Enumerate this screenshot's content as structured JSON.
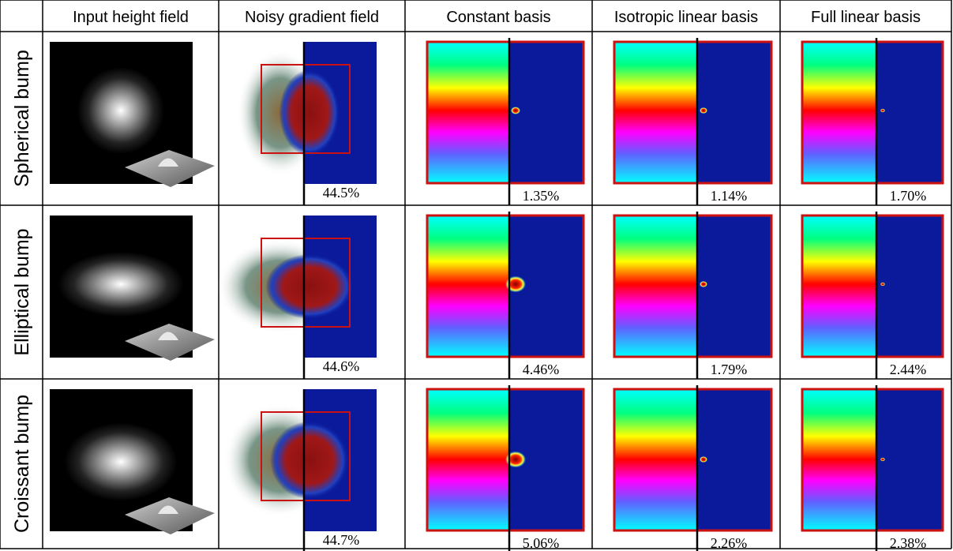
{
  "columns": [
    "Input height field",
    "Noisy gradient field",
    "Constant basis",
    "Isotropic linear basis",
    "Full linear basis"
  ],
  "rows": [
    {
      "label": "Spherical bump",
      "shape": "spherical",
      "errors": [
        "44.5%",
        "1.35%",
        "1.14%",
        "1.70%"
      ]
    },
    {
      "label": "Elliptical bump",
      "shape": "elliptical",
      "errors": [
        "44.6%",
        "4.46%",
        "1.79%",
        "2.44%"
      ]
    },
    {
      "label": "Croissant bump",
      "shape": "croissant",
      "errors": [
        "44.7%",
        "5.06%",
        "2.26%",
        "2.38%"
      ]
    }
  ],
  "colors": {
    "error_background": "#0a1a9a",
    "highlight_box": "#cc1111",
    "grid_lines": "#000000"
  }
}
